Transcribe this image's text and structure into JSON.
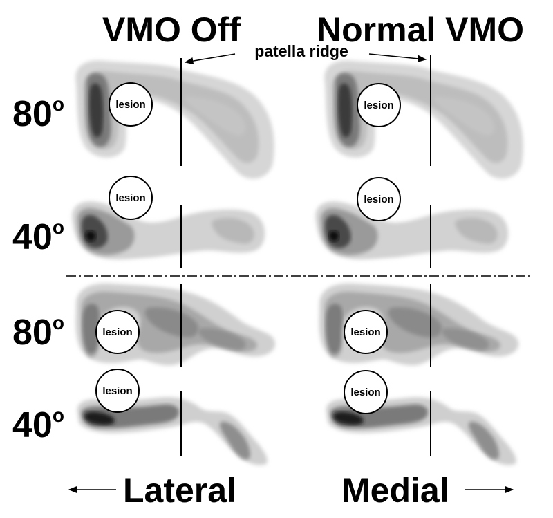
{
  "columns": {
    "left_title": "VMO Off",
    "right_title": "Normal VMO"
  },
  "rows": [
    {
      "angle": "80",
      "degree_mark": "o"
    },
    {
      "angle": "40",
      "degree_mark": "o"
    },
    {
      "angle": "80",
      "degree_mark": "o"
    },
    {
      "angle": "40",
      "degree_mark": "o"
    }
  ],
  "annotations": {
    "patella_ridge": "patella ridge",
    "lesion": "lesion"
  },
  "directions": {
    "lateral": "Lateral",
    "medial": "Medial"
  },
  "colors": {
    "blob_light": "#d4d4d4",
    "blob_mid": "#aaaaaa",
    "blob_dark": "#6e6e6e",
    "blob_darkest": "#2a2a2a",
    "ink": "#000000"
  }
}
